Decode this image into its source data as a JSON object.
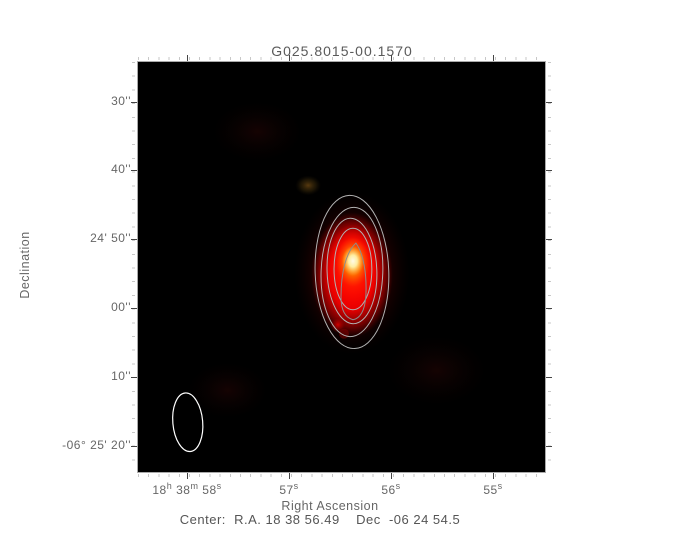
{
  "title": "G025.8015-00.1570",
  "axes": {
    "x_label": "Right Ascension",
    "y_label": "Declination",
    "x_ticks": [
      {
        "segments": [
          {
            "t": "18",
            "sup": "h"
          },
          {
            "t": " 38",
            "sup": "m"
          },
          {
            "t": " 58",
            "sup": "s"
          }
        ]
      },
      {
        "segments": [
          {
            "t": "57",
            "sup": "s"
          }
        ]
      },
      {
        "segments": [
          {
            "t": "56",
            "sup": "s"
          }
        ]
      },
      {
        "segments": [
          {
            "t": "55",
            "sup": "s"
          }
        ]
      }
    ],
    "y_ticks": [
      "30''",
      "40''",
      "24' 50''",
      "00''",
      "10''",
      "-06° 25' 20''"
    ]
  },
  "caption": "Center:  R.A. 18 38 56.49    Dec  -06 24 54.5",
  "colors": {
    "field_background": "#000000",
    "contour": "#b3b3b3",
    "beam_outline": "#ffffff",
    "source_core": "#fff8d8",
    "source_emission": "#ff0000",
    "text": "#666666"
  },
  "chart_data": {
    "type": "heatmap",
    "title": "G025.8015-00.1570",
    "xlabel": "Right Ascension",
    "ylabel": "Declination",
    "x_tick_labels": [
      "18h 38m 58s",
      "57s",
      "56s",
      "55s"
    ],
    "y_tick_labels": [
      "30''",
      "40''",
      "24' 50''",
      "00''",
      "10''",
      "-06° 25' 20''"
    ],
    "x_axis": {
      "major_tick_interval": "1 s of RA",
      "direction": "RA increases to the left",
      "approx_range_s": [
        58.5,
        54.5
      ]
    },
    "y_axis": {
      "major_tick_interval": "10 arcsec",
      "approx_range": [
        "-06 24 24",
        "-06 25 24"
      ]
    },
    "center": {
      "ra": "18 38 56.49",
      "dec": "-06 24 54.5"
    },
    "main_source": {
      "peak_ra": "18 38 56.4",
      "peak_dec": "-06 24 53",
      "appearance": "bright red blob elongated N-S with yellow-white saturated core"
    },
    "contours": {
      "count": 5,
      "shape": "nested N-S elongated ellipses centered on source",
      "color": "#b3b3b3"
    },
    "beam_ellipse": {
      "location": "lower-left corner",
      "approx_size_arcsec": [
        4.4,
        8.6
      ]
    },
    "secondary_features": [
      {
        "desc": "faint diffuse orange spot NW of source",
        "approx_ra": "18 38 56.8",
        "approx_dec": "-06 24 44"
      },
      {
        "desc": "small red knob at southern edge of contours",
        "approx_ra": "18 38 56.5",
        "approx_dec": "-06 25 02"
      }
    ],
    "legend": "none",
    "grid": false
  }
}
